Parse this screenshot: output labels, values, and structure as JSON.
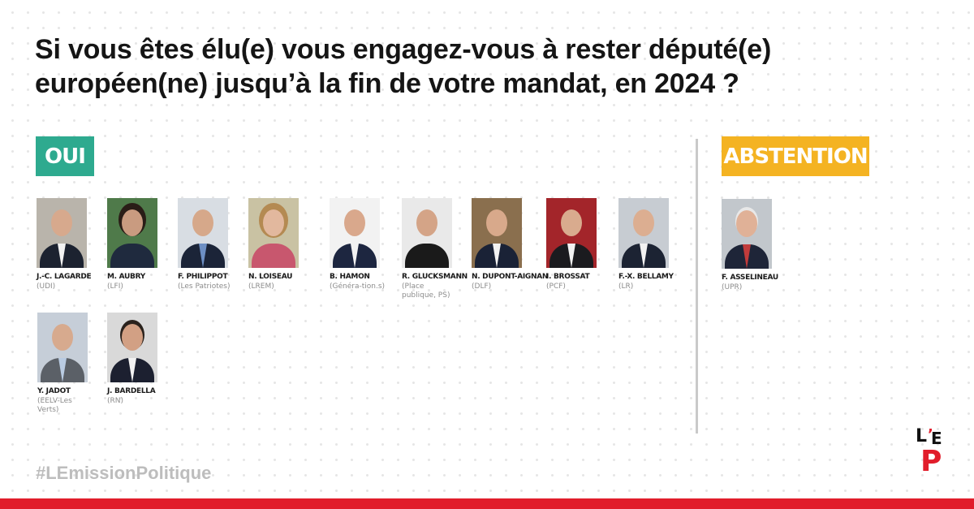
{
  "question": "Si vous êtes élu(e) vous engagez-vous à rester député(e) européen(ne) jusqu’à la fin de votre mandat, en 2024 ?",
  "groups": {
    "oui_label": "OUI",
    "abstention_label": "ABSTENTION"
  },
  "colors": {
    "oui": "#2eaa8f",
    "abstention": "#f4b322",
    "brand_red": "#e11d2b"
  },
  "candidates_oui": [
    {
      "name": "J.-C. LAGARDE",
      "party": "(UDI)"
    },
    {
      "name": "M. AUBRY",
      "party": "(LFI)"
    },
    {
      "name": "F. PHILIPPOT",
      "party": "(Les Patriotes)"
    },
    {
      "name": "N. LOISEAU",
      "party": "(LREM)"
    },
    {
      "name": "B. HAMON",
      "party": "(Généra-tion.s)"
    },
    {
      "name": "R. GLUCKSMANN",
      "party": "(Place publique, PS)"
    },
    {
      "name": "N. DUPONT-AIGNAN",
      "party": "(DLF)"
    },
    {
      "name": "I. BROSSAT",
      "party": "(PCF)"
    },
    {
      "name": "F.-X. BELLAMY",
      "party": "(LR)"
    },
    {
      "name": "Y. JADOT",
      "party": "(EELV-Les Verts)"
    },
    {
      "name": "J. BARDELLA",
      "party": "(RN)"
    }
  ],
  "candidates_abstention": [
    {
      "name": "F. ASSELINEAU",
      "party": "(UPR)"
    }
  ],
  "hashtag": "#LEmissionPolitique",
  "logo": {
    "l": "L",
    "apostrophe": "’",
    "e": "E",
    "p": "P"
  }
}
